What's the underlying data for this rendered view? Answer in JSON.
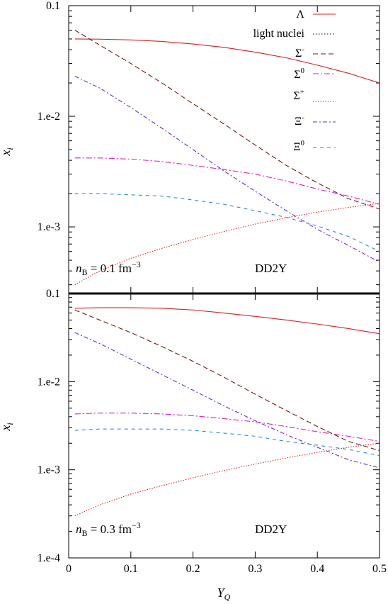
{
  "chart_data": [
    {
      "type": "line",
      "panel": "top",
      "xlabel": "",
      "ylabel": "x_i",
      "xlim": [
        0,
        0.5
      ],
      "ylim": [
        0.0001,
        0.1
      ],
      "y_scale": "log",
      "y_tick_labels": [
        "0.1",
        "1.e-2",
        "1.e-3"
      ],
      "annotation_nb": "n_B = 0.1 fm^-3",
      "annotation_model": "DD2Y",
      "legend": "top-right",
      "series": [
        {
          "name": "Λ",
          "color": "#d42020",
          "dash": "solid",
          "x": [
            0.01,
            0.05,
            0.1,
            0.15,
            0.2,
            0.25,
            0.3,
            0.35,
            0.4,
            0.45,
            0.5
          ],
          "y": [
            0.05,
            0.0498,
            0.049,
            0.0475,
            0.045,
            0.042,
            0.038,
            0.0338,
            0.029,
            0.0245,
            0.02
          ]
        },
        {
          "name": "light nuclei",
          "color": "#000000",
          "dash": "dotted",
          "x": [],
          "y": []
        },
        {
          "name": "Σ-",
          "color": "#6b1a10",
          "dash": "dashed",
          "x": [
            0.01,
            0.05,
            0.1,
            0.15,
            0.2,
            0.25,
            0.3,
            0.35,
            0.4,
            0.45,
            0.5
          ],
          "y": [
            0.06,
            0.044,
            0.03,
            0.02,
            0.013,
            0.0085,
            0.0055,
            0.0036,
            0.0025,
            0.0018,
            0.00145
          ]
        },
        {
          "name": "Σ0",
          "color": "#e020c0",
          "dash": "dashdot",
          "x": [
            0.01,
            0.05,
            0.1,
            0.15,
            0.2,
            0.25,
            0.3,
            0.35,
            0.4,
            0.45,
            0.5
          ],
          "y": [
            0.0042,
            0.0042,
            0.0041,
            0.0039,
            0.0036,
            0.0033,
            0.003,
            0.0026,
            0.0022,
            0.0019,
            0.0016
          ]
        },
        {
          "name": "Σ+",
          "color": "#e02020",
          "dash": "dotted",
          "x": [
            0.01,
            0.05,
            0.1,
            0.15,
            0.2,
            0.25,
            0.3,
            0.35,
            0.4,
            0.45,
            0.5
          ],
          "y": [
            0.0003,
            0.0004,
            0.00052,
            0.00064,
            0.00077,
            0.00091,
            0.00106,
            0.00121,
            0.00136,
            0.0015,
            0.00163
          ]
        },
        {
          "name": "Ξ-",
          "color": "#6a2ae0",
          "dash": "dashdot",
          "x": [
            0.01,
            0.05,
            0.1,
            0.15,
            0.2,
            0.25,
            0.3,
            0.35,
            0.4,
            0.45,
            0.5
          ],
          "y": [
            0.023,
            0.018,
            0.012,
            0.0078,
            0.005,
            0.0032,
            0.0021,
            0.0014,
            0.00095,
            0.00068,
            0.00048
          ]
        },
        {
          "name": "Ξ0",
          "color": "#2a88e0",
          "dash": "dashed",
          "x": [
            0.01,
            0.05,
            0.1,
            0.15,
            0.2,
            0.25,
            0.3,
            0.35,
            0.4,
            0.45,
            0.5
          ],
          "y": [
            0.002,
            0.002,
            0.00195,
            0.0019,
            0.00175,
            0.0016,
            0.0014,
            0.00122,
            0.00102,
            0.00082,
            0.0006
          ]
        }
      ]
    },
    {
      "type": "line",
      "panel": "bottom",
      "xlabel": "Y_Q",
      "ylabel": "x_i",
      "xlim": [
        0,
        0.5
      ],
      "ylim": [
        0.0001,
        0.1
      ],
      "y_scale": "log",
      "x_tick_labels": [
        "0",
        "0.1",
        "0.2",
        "0.3",
        "0.4",
        "0.5"
      ],
      "y_tick_labels": [
        "0.1",
        "1.e-2",
        "1.e-3",
        "1.e-4"
      ],
      "annotation_nb": "n_B = 0.3 fm^-3",
      "annotation_model": "DD2Y",
      "series": [
        {
          "name": "Λ",
          "color": "#d42020",
          "dash": "solid",
          "x": [
            0.01,
            0.05,
            0.1,
            0.15,
            0.2,
            0.25,
            0.3,
            0.35,
            0.4,
            0.45,
            0.5
          ],
          "y": [
            0.068,
            0.069,
            0.069,
            0.068,
            0.065,
            0.06,
            0.055,
            0.05,
            0.045,
            0.04,
            0.035
          ]
        },
        {
          "name": "Σ-",
          "color": "#6b1a10",
          "dash": "dashed",
          "x": [
            0.01,
            0.05,
            0.1,
            0.15,
            0.2,
            0.25,
            0.3,
            0.35,
            0.4,
            0.45,
            0.5
          ],
          "y": [
            0.065,
            0.05,
            0.036,
            0.025,
            0.017,
            0.0112,
            0.0072,
            0.0047,
            0.0031,
            0.0021,
            0.00165
          ]
        },
        {
          "name": "Σ0",
          "color": "#e020c0",
          "dash": "dashdot",
          "x": [
            0.01,
            0.05,
            0.1,
            0.15,
            0.2,
            0.25,
            0.3,
            0.35,
            0.4,
            0.45,
            0.5
          ],
          "y": [
            0.0043,
            0.0044,
            0.0044,
            0.0043,
            0.0041,
            0.0038,
            0.0035,
            0.0031,
            0.0027,
            0.0024,
            0.0021
          ]
        },
        {
          "name": "Σ+",
          "color": "#e02020",
          "dash": "dotted",
          "x": [
            0.01,
            0.05,
            0.1,
            0.15,
            0.2,
            0.25,
            0.3,
            0.35,
            0.4,
            0.45,
            0.5
          ],
          "y": [
            0.0003,
            0.0004,
            0.00053,
            0.00066,
            0.00081,
            0.00098,
            0.00116,
            0.00136,
            0.00158,
            0.0018,
            0.002
          ]
        },
        {
          "name": "Ξ-",
          "color": "#6a2ae0",
          "dash": "dashdot",
          "x": [
            0.01,
            0.05,
            0.1,
            0.15,
            0.2,
            0.25,
            0.3,
            0.35,
            0.4,
            0.45,
            0.5
          ],
          "y": [
            0.036,
            0.027,
            0.018,
            0.012,
            0.008,
            0.0053,
            0.0036,
            0.0025,
            0.0018,
            0.0013,
            0.00105
          ]
        },
        {
          "name": "Ξ0",
          "color": "#2a88e0",
          "dash": "dashed",
          "x": [
            0.01,
            0.05,
            0.1,
            0.15,
            0.2,
            0.25,
            0.3,
            0.35,
            0.4,
            0.45,
            0.5
          ],
          "y": [
            0.0028,
            0.0029,
            0.0029,
            0.0029,
            0.0028,
            0.0026,
            0.0024,
            0.0021,
            0.0019,
            0.0017,
            0.00145
          ]
        }
      ]
    }
  ]
}
